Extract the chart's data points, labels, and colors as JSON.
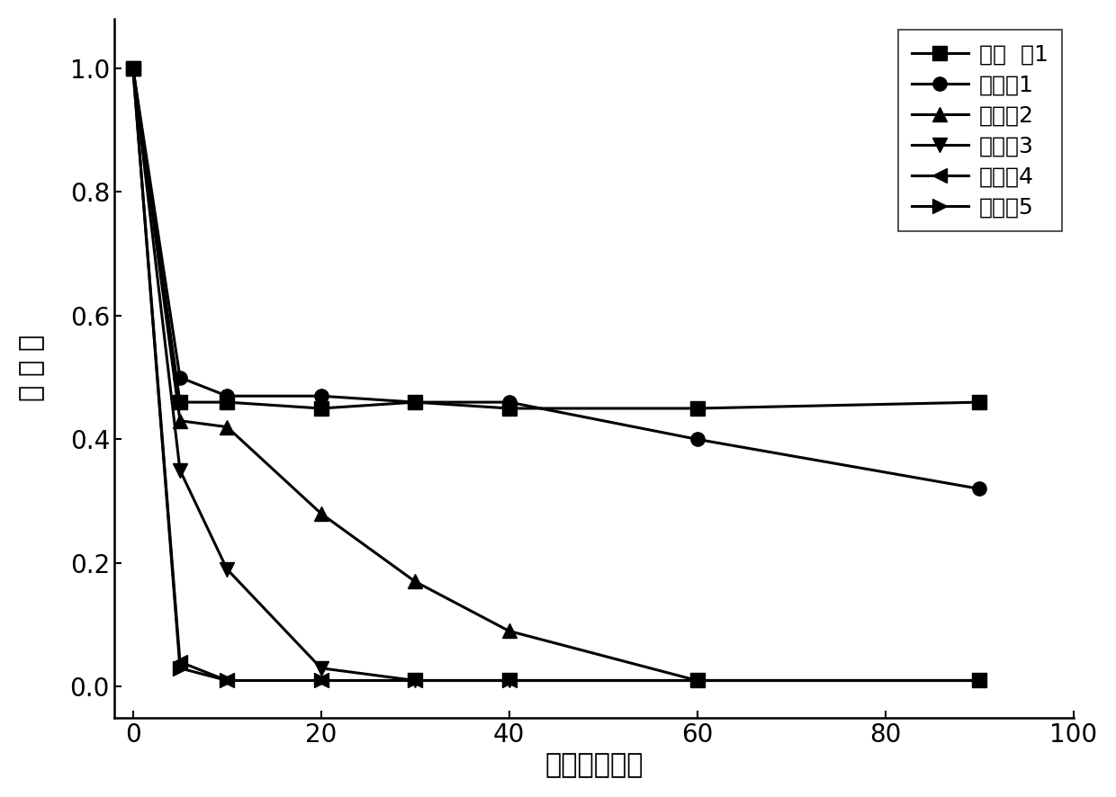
{
  "series": [
    {
      "label": "对比  例1",
      "marker": "s",
      "x": [
        0,
        5,
        10,
        20,
        30,
        40,
        60,
        90
      ],
      "y": [
        1.0,
        0.46,
        0.46,
        0.45,
        0.46,
        0.45,
        0.45,
        0.46
      ]
    },
    {
      "label": "实施例1",
      "marker": "o",
      "x": [
        0,
        5,
        10,
        20,
        30,
        40,
        60,
        90
      ],
      "y": [
        1.0,
        0.5,
        0.47,
        0.47,
        0.46,
        0.46,
        0.4,
        0.32
      ]
    },
    {
      "label": "实施例2",
      "marker": "^",
      "x": [
        0,
        5,
        10,
        20,
        30,
        40,
        60,
        90
      ],
      "y": [
        1.0,
        0.43,
        0.42,
        0.28,
        0.17,
        0.09,
        0.01,
        0.01
      ]
    },
    {
      "label": "实施例3",
      "marker": "v",
      "x": [
        0,
        5,
        10,
        20,
        30,
        40,
        60,
        90
      ],
      "y": [
        1.0,
        0.35,
        0.19,
        0.03,
        0.01,
        0.01,
        0.01,
        0.01
      ]
    },
    {
      "label": "实施例4",
      "marker": "<",
      "x": [
        0,
        5,
        10,
        20,
        30,
        40,
        60,
        90
      ],
      "y": [
        1.0,
        0.04,
        0.01,
        0.01,
        0.01,
        0.01,
        0.01,
        0.01
      ]
    },
    {
      "label": "实施例5",
      "marker": ">",
      "x": [
        0,
        5,
        10,
        20,
        30,
        40,
        60,
        90
      ],
      "y": [
        1.0,
        0.03,
        0.01,
        0.01,
        0.01,
        0.01,
        0.01,
        0.01
      ]
    }
  ],
  "color": "#000000",
  "xlabel": "时间（分钟）",
  "ylabel": "降 解 率",
  "xlim": [
    -2,
    100
  ],
  "ylim": [
    -0.05,
    1.08
  ],
  "xticks": [
    0,
    20,
    40,
    60,
    80,
    100
  ],
  "yticks": [
    0.0,
    0.2,
    0.4,
    0.6,
    0.8,
    1.0
  ],
  "label_fontsize": 22,
  "tick_fontsize": 20,
  "legend_fontsize": 18,
  "linewidth": 2.2,
  "markersize": 11,
  "background_color": "#ffffff"
}
